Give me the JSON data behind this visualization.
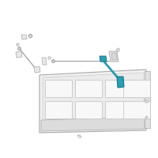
{
  "bg_color": "#ffffff",
  "teal": "#2a9db5",
  "gray_light": "#c8c8c8",
  "gray_mid": "#a8a8a8",
  "gray_dark": "#888888",
  "part_fill": "#e8e8e8",
  "part_fill2": "#d8d8d8",
  "figsize": [
    2.0,
    2.0
  ],
  "dpi": 100
}
